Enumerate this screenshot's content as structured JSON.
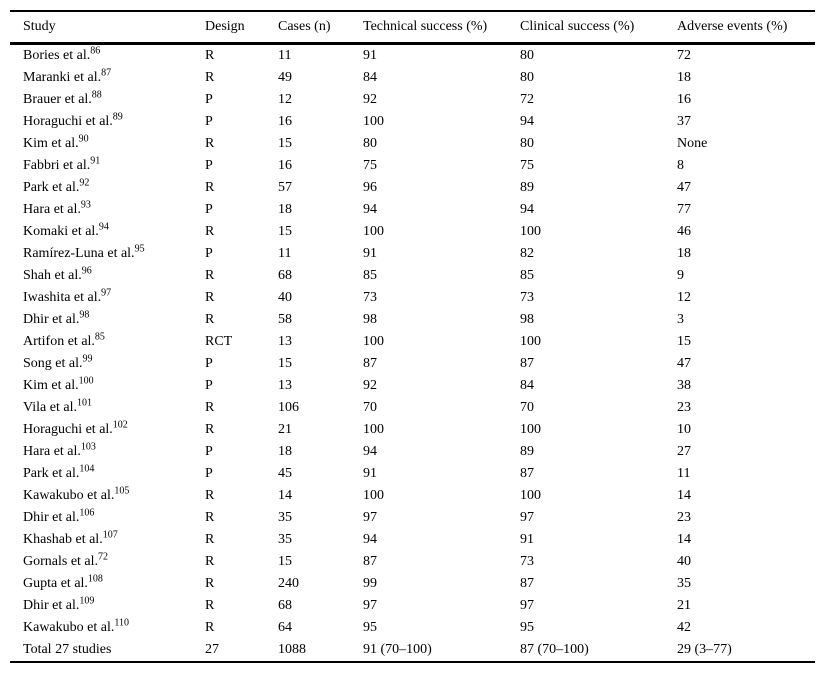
{
  "table": {
    "columns": [
      "Study",
      "Design",
      "Cases (n)",
      "Technical success (%)",
      "Clinical success (%)",
      "Adverse events (%)"
    ],
    "rows": [
      {
        "study": "Bories et al.",
        "ref": "86",
        "design": "R",
        "cases": "11",
        "technical": "91",
        "clinical": "80",
        "adverse": "72"
      },
      {
        "study": "Maranki et al.",
        "ref": "87",
        "design": "R",
        "cases": "49",
        "technical": "84",
        "clinical": "80",
        "adverse": "18"
      },
      {
        "study": "Brauer et al.",
        "ref": "88",
        "design": "P",
        "cases": "12",
        "technical": "92",
        "clinical": "72",
        "adverse": "16"
      },
      {
        "study": "Horaguchi et al.",
        "ref": "89",
        "design": "P",
        "cases": "16",
        "technical": "100",
        "clinical": "94",
        "adverse": "37"
      },
      {
        "study": "Kim et al.",
        "ref": "90",
        "design": "R",
        "cases": "15",
        "technical": "80",
        "clinical": "80",
        "adverse": "None"
      },
      {
        "study": "Fabbri et al.",
        "ref": "91",
        "design": "P",
        "cases": "16",
        "technical": "75",
        "clinical": "75",
        "adverse": "8"
      },
      {
        "study": "Park et al.",
        "ref": "92",
        "design": "R",
        "cases": "57",
        "technical": "96",
        "clinical": "89",
        "adverse": "47"
      },
      {
        "study": "Hara et al.",
        "ref": "93",
        "design": "P",
        "cases": "18",
        "technical": "94",
        "clinical": "94",
        "adverse": "77"
      },
      {
        "study": "Komaki et al.",
        "ref": "94",
        "design": "R",
        "cases": "15",
        "technical": "100",
        "clinical": "100",
        "adverse": "46"
      },
      {
        "study": "Ramírez-Luna et al.",
        "ref": "95",
        "design": "P",
        "cases": "11",
        "technical": "91",
        "clinical": "82",
        "adverse": "18"
      },
      {
        "study": "Shah et al.",
        "ref": "96",
        "design": "R",
        "cases": "68",
        "technical": "85",
        "clinical": "85",
        "adverse": "9"
      },
      {
        "study": "Iwashita et al.",
        "ref": "97",
        "design": "R",
        "cases": "40",
        "technical": "73",
        "clinical": "73",
        "adverse": "12"
      },
      {
        "study": "Dhir et al.",
        "ref": "98",
        "design": "R",
        "cases": "58",
        "technical": "98",
        "clinical": "98",
        "adverse": "3"
      },
      {
        "study": "Artifon et al.",
        "ref": "85",
        "design": "RCT",
        "cases": "13",
        "technical": "100",
        "clinical": "100",
        "adverse": "15"
      },
      {
        "study": "Song et al.",
        "ref": "99",
        "design": "P",
        "cases": "15",
        "technical": "87",
        "clinical": "87",
        "adverse": "47"
      },
      {
        "study": "Kim et al.",
        "ref": "100",
        "design": "P",
        "cases": "13",
        "technical": "92",
        "clinical": "84",
        "adverse": "38"
      },
      {
        "study": "Vila et al.",
        "ref": "101",
        "design": "R",
        "cases": "106",
        "technical": "70",
        "clinical": "70",
        "adverse": "23"
      },
      {
        "study": "Horaguchi et al.",
        "ref": "102",
        "design": "R",
        "cases": "21",
        "technical": "100",
        "clinical": "100",
        "adverse": "10"
      },
      {
        "study": "Hara et al.",
        "ref": "103",
        "design": "P",
        "cases": "18",
        "technical": "94",
        "clinical": "89",
        "adverse": "27"
      },
      {
        "study": "Park et al.",
        "ref": "104",
        "design": "P",
        "cases": "45",
        "technical": "91",
        "clinical": "87",
        "adverse": "11"
      },
      {
        "study": "Kawakubo et al.",
        "ref": "105",
        "design": "R",
        "cases": "14",
        "technical": "100",
        "clinical": "100",
        "adverse": "14"
      },
      {
        "study": "Dhir et al.",
        "ref": "106",
        "design": "R",
        "cases": "35",
        "technical": "97",
        "clinical": "97",
        "adverse": "23"
      },
      {
        "study": "Khashab et al.",
        "ref": "107",
        "design": "R",
        "cases": "35",
        "technical": "94",
        "clinical": "91",
        "adverse": "14"
      },
      {
        "study": "Gornals et al.",
        "ref": "72",
        "design": "R",
        "cases": "15",
        "technical": "87",
        "clinical": "73",
        "adverse": "40"
      },
      {
        "study": "Gupta et al.",
        "ref": "108",
        "design": "R",
        "cases": "240",
        "technical": "99",
        "clinical": "87",
        "adverse": "35"
      },
      {
        "study": "Dhir et al.",
        "ref": "109",
        "design": "R",
        "cases": "68",
        "technical": "97",
        "clinical": "97",
        "adverse": "21"
      },
      {
        "study": "Kawakubo et al.",
        "ref": "110",
        "design": "R",
        "cases": "64",
        "technical": "95",
        "clinical": "95",
        "adverse": "42"
      }
    ],
    "total": {
      "study": "Total 27 studies",
      "ref": "",
      "design": "27",
      "cases": "1088",
      "technical": "91 (70–100)",
      "clinical": "87 (70–100)",
      "adverse": "29 (3–77)"
    }
  }
}
